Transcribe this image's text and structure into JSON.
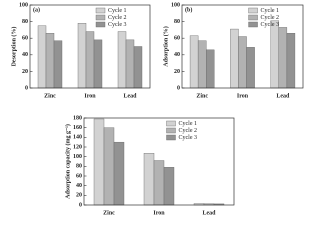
{
  "chart_data": [
    {
      "type": "bar",
      "panel_label": "(a)",
      "y_label": "Desorption (%)",
      "categories": [
        "Zinc",
        "Iron",
        "Lead"
      ],
      "series": [
        {
          "name": "Cycle 1",
          "color": "#d2d2d2",
          "values": [
            75,
            78,
            68
          ]
        },
        {
          "name": "Cycle 2",
          "color": "#b2b2b2",
          "values": [
            66,
            68,
            58
          ]
        },
        {
          "name": "Cycle 3",
          "color": "#929292",
          "values": [
            57,
            58,
            50
          ]
        }
      ],
      "ylim": [
        0,
        100
      ],
      "yticks": [
        0,
        20,
        40,
        60,
        80,
        100
      ]
    },
    {
      "type": "bar",
      "panel_label": "(b)",
      "y_label": "Adsorption (%)",
      "categories": [
        "Zinc",
        "Iron",
        "Lead"
      ],
      "series": [
        {
          "name": "Cycle 1",
          "color": "#d2d2d2",
          "values": [
            63,
            71,
            81
          ]
        },
        {
          "name": "Cycle 2",
          "color": "#b2b2b2",
          "values": [
            57,
            62,
            73
          ]
        },
        {
          "name": "Cycle 3",
          "color": "#929292",
          "values": [
            46,
            49,
            66
          ]
        }
      ],
      "ylim": [
        0,
        100
      ],
      "yticks": [
        0,
        20,
        40,
        60,
        80,
        100
      ]
    },
    {
      "type": "bar",
      "y_label": "Adsorption capacity (mg g⁻¹)",
      "categories": [
        "Zinc",
        "Iron",
        "Lead"
      ],
      "series": [
        {
          "name": "Cycle 1",
          "color": "#d2d2d2",
          "values": [
            178,
            107,
            3
          ]
        },
        {
          "name": "Cycle 2",
          "color": "#b2b2b2",
          "values": [
            160,
            92,
            2.5
          ]
        },
        {
          "name": "Cycle 3",
          "color": "#929292",
          "values": [
            130,
            78,
            2.3
          ]
        }
      ],
      "ylim": [
        0,
        180
      ],
      "yticks": [
        0,
        20,
        40,
        60,
        80,
        100,
        120,
        140,
        160,
        180
      ]
    }
  ]
}
